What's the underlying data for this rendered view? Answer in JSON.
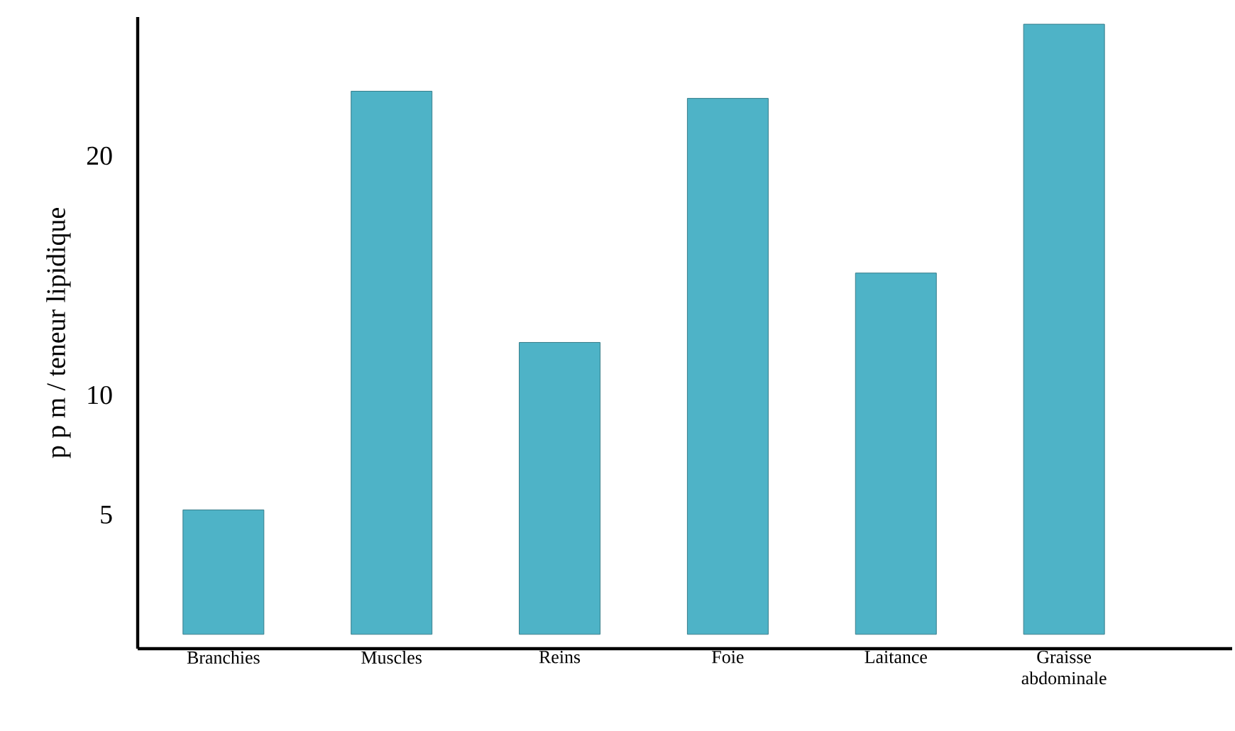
{
  "chart_data": {
    "type": "bar",
    "ylabel": "p p m / teneur lipidique",
    "categories": [
      "Branchies",
      "Muscles",
      "Reins",
      "Foie",
      "Laitance",
      "Graisse abdominale"
    ],
    "values": [
      5.2,
      22.7,
      12.2,
      22.4,
      15.1,
      25.5
    ],
    "color": "#4eb3c7",
    "ylim": [
      -0.6,
      25.8
    ],
    "yticks": [
      5,
      10,
      20
    ]
  }
}
